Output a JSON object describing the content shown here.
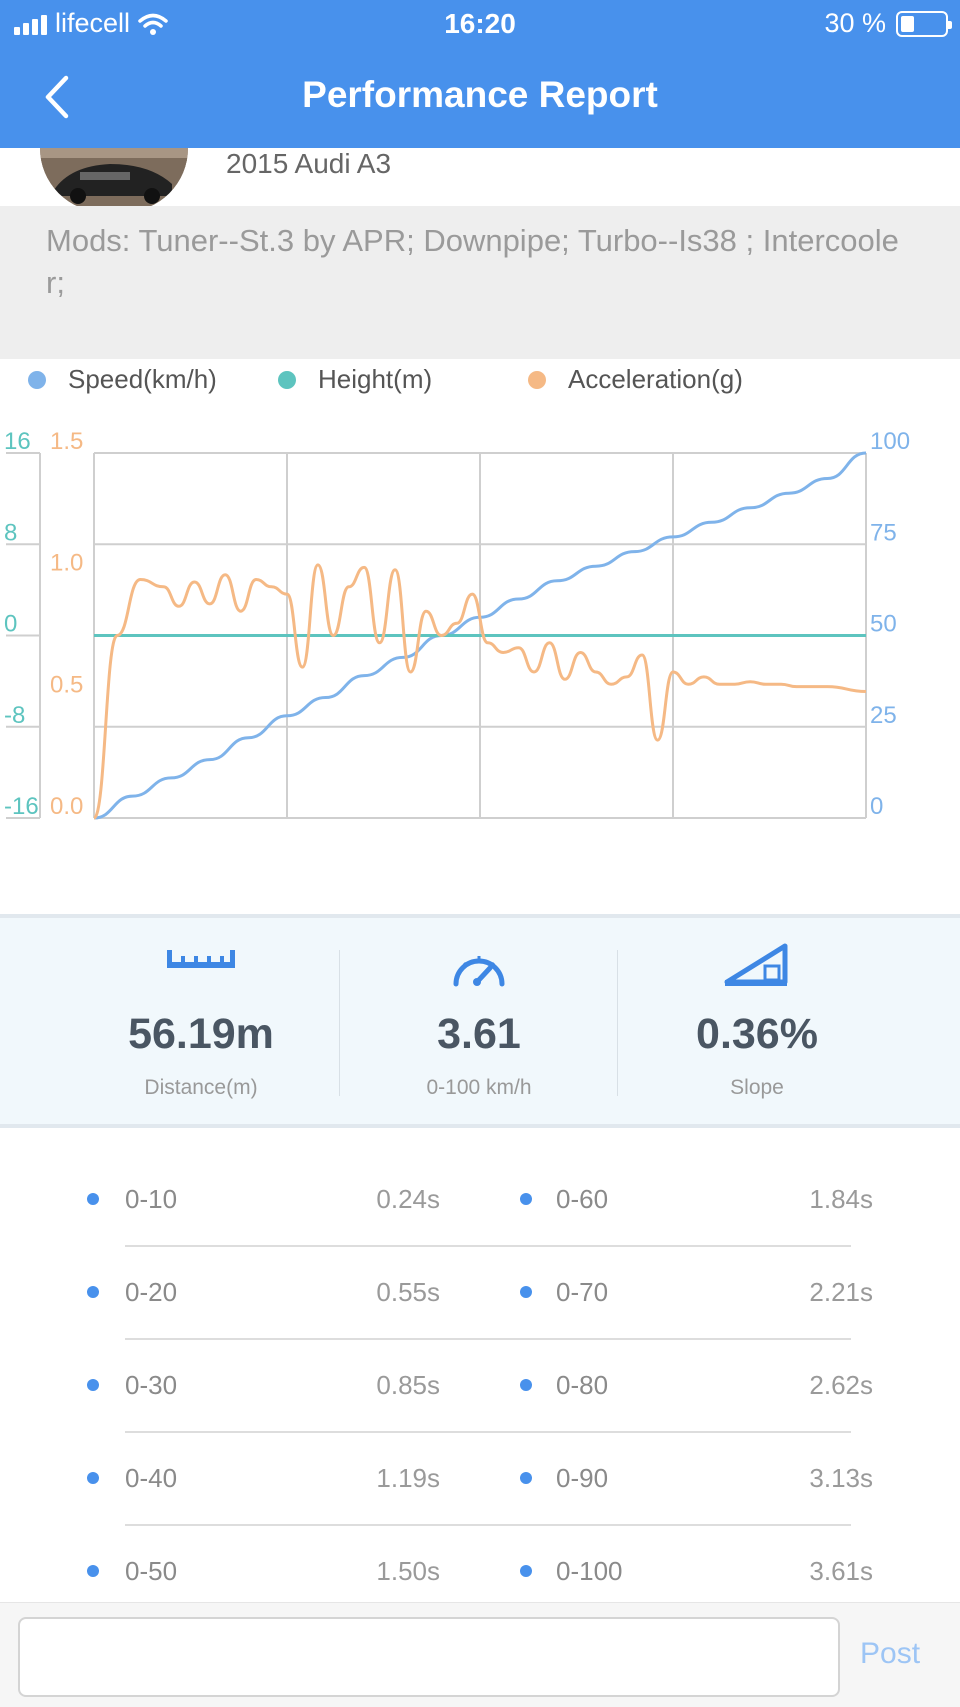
{
  "status_bar": {
    "carrier": "lifecell",
    "time": "16:20",
    "battery": "30 %",
    "battery_level": 0.3
  },
  "header": {
    "title": "Performance Report",
    "back_icon": "chevron-left-icon"
  },
  "profile": {
    "car": "2015 Audi A3"
  },
  "mods": {
    "text": "Mods: Tuner--St.3 by APR; Downpipe; Turbo--Is38 ; Intercooler;"
  },
  "chart_data": {
    "type": "line",
    "legend": [
      {
        "name": "Speed(km/h)",
        "color": "#7FB3EA"
      },
      {
        "name": "Height(m)",
        "color": "#5DC4BF"
      },
      {
        "name": "Acceleration(g)",
        "color": "#F5B985"
      }
    ],
    "axes": {
      "height_ticks": [
        "16",
        "8",
        "0",
        "-8",
        "-16"
      ],
      "height_range": [
        -16,
        16
      ],
      "accel_ticks": [
        "1.5",
        "1.0",
        "0.5",
        "0.0"
      ],
      "accel_range": [
        0.0,
        1.5
      ],
      "speed_ticks": [
        "100",
        "75",
        "50",
        "25",
        "0"
      ],
      "speed_range": [
        0,
        100
      ]
    },
    "grid": true,
    "series": [
      {
        "name": "Speed(km/h)",
        "x": [
          0,
          0.05,
          0.1,
          0.15,
          0.2,
          0.25,
          0.3,
          0.35,
          0.4,
          0.45,
          0.5,
          0.55,
          0.6,
          0.65,
          0.7,
          0.75,
          0.8,
          0.85,
          0.9,
          0.95,
          1.0
        ],
        "values": [
          0,
          6,
          11,
          16,
          22,
          28,
          33,
          39,
          44,
          50,
          55,
          60,
          65,
          69,
          73,
          77,
          81,
          85,
          89,
          93,
          100
        ]
      },
      {
        "name": "Height(m)",
        "x": [
          0,
          0.25,
          0.5,
          0.75,
          1.0
        ],
        "values": [
          0,
          0,
          0,
          0,
          0
        ]
      },
      {
        "name": "Acceleration(g)",
        "x": [
          0,
          0.03,
          0.06,
          0.09,
          0.11,
          0.13,
          0.15,
          0.17,
          0.19,
          0.21,
          0.23,
          0.25,
          0.27,
          0.29,
          0.31,
          0.33,
          0.35,
          0.37,
          0.39,
          0.41,
          0.43,
          0.45,
          0.47,
          0.49,
          0.51,
          0.53,
          0.55,
          0.57,
          0.59,
          0.61,
          0.63,
          0.65,
          0.67,
          0.69,
          0.71,
          0.73,
          0.75,
          0.77,
          0.79,
          0.81,
          0.83,
          0.85,
          0.87,
          0.89,
          0.91,
          0.93,
          0.95,
          1.0
        ],
        "values": [
          0.0,
          0.75,
          0.98,
          0.95,
          0.87,
          0.97,
          0.88,
          1.0,
          0.85,
          0.98,
          0.95,
          0.92,
          0.62,
          1.04,
          0.75,
          0.95,
          1.03,
          0.72,
          1.02,
          0.6,
          0.85,
          0.75,
          0.8,
          0.92,
          0.72,
          0.68,
          0.7,
          0.6,
          0.72,
          0.57,
          0.68,
          0.6,
          0.55,
          0.58,
          0.67,
          0.32,
          0.6,
          0.55,
          0.58,
          0.55,
          0.55,
          0.56,
          0.55,
          0.55,
          0.54,
          0.54,
          0.54,
          0.52
        ]
      }
    ]
  },
  "summary": {
    "distance_value": "56.19m",
    "distance_label": "Distance(m)",
    "time_value": "3.61",
    "time_label": "0-100 km/h",
    "slope_value": "0.36%",
    "slope_label": "Slope"
  },
  "times": {
    "left": [
      {
        "range": "0-10",
        "time": "0.24s"
      },
      {
        "range": "0-20",
        "time": "0.55s"
      },
      {
        "range": "0-30",
        "time": "0.85s"
      },
      {
        "range": "0-40",
        "time": "1.19s"
      },
      {
        "range": "0-50",
        "time": "1.50s"
      }
    ],
    "right": [
      {
        "range": "0-60",
        "time": "1.84s"
      },
      {
        "range": "0-70",
        "time": "2.21s"
      },
      {
        "range": "0-80",
        "time": "2.62s"
      },
      {
        "range": "0-90",
        "time": "3.13s"
      },
      {
        "range": "0-100",
        "time": "3.61s"
      }
    ]
  },
  "footer": {
    "comment_placeholder": "",
    "post_label": "Post"
  }
}
